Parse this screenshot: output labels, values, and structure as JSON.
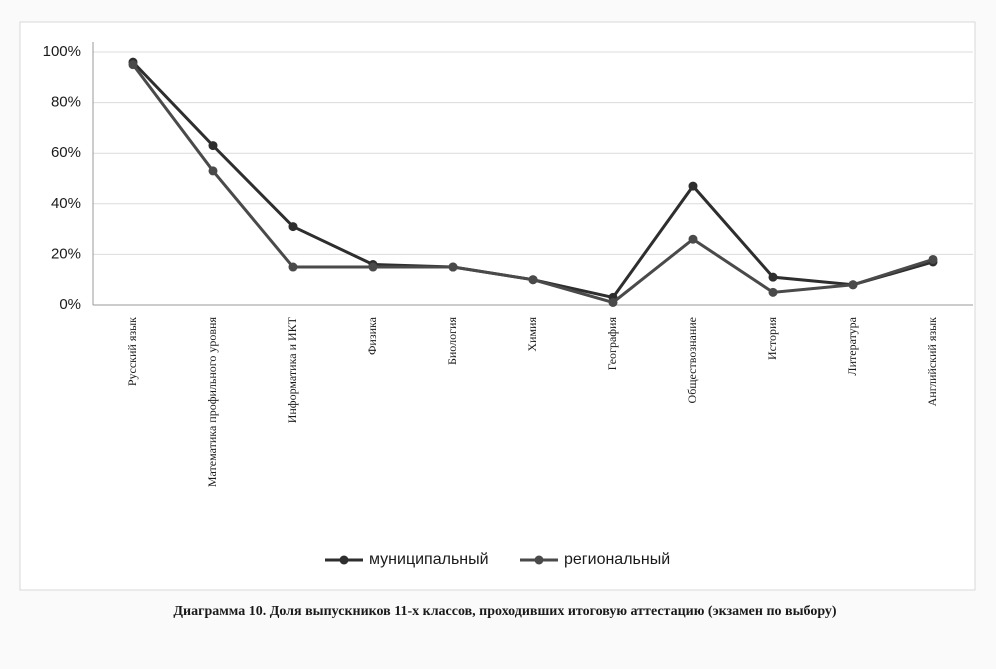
{
  "chart_data": {
    "type": "line",
    "caption": "Диаграмма 10. Доля выпускников 11-х классов, проходивших итоговую аттестацию (экзамен по выбору)",
    "categories": [
      "Русский язык",
      "Математика профильного уровня",
      "Информатика и ИКТ",
      "Физика",
      "Биология",
      "Химия",
      "География",
      "Обществознание",
      "История",
      "Литература",
      "Английский язык"
    ],
    "series": [
      {
        "name": "муниципальный",
        "color": "#2e2e2e",
        "values": [
          96,
          63,
          31,
          16,
          15,
          10,
          3,
          47,
          11,
          8,
          17
        ]
      },
      {
        "name": "региональный",
        "color": "#4a4a4a",
        "values": [
          95,
          53,
          15,
          15,
          15,
          10,
          1,
          26,
          5,
          8,
          18
        ]
      }
    ],
    "ylim": [
      0,
      100
    ],
    "yticks": [
      {
        "value": 0,
        "label": "0%"
      },
      {
        "value": 20,
        "label": "20%"
      },
      {
        "value": 40,
        "label": "40%"
      },
      {
        "value": 60,
        "label": "60%"
      },
      {
        "value": 80,
        "label": "80%"
      },
      {
        "value": 100,
        "label": "100%"
      }
    ],
    "grid": true,
    "legend": "bottom"
  }
}
